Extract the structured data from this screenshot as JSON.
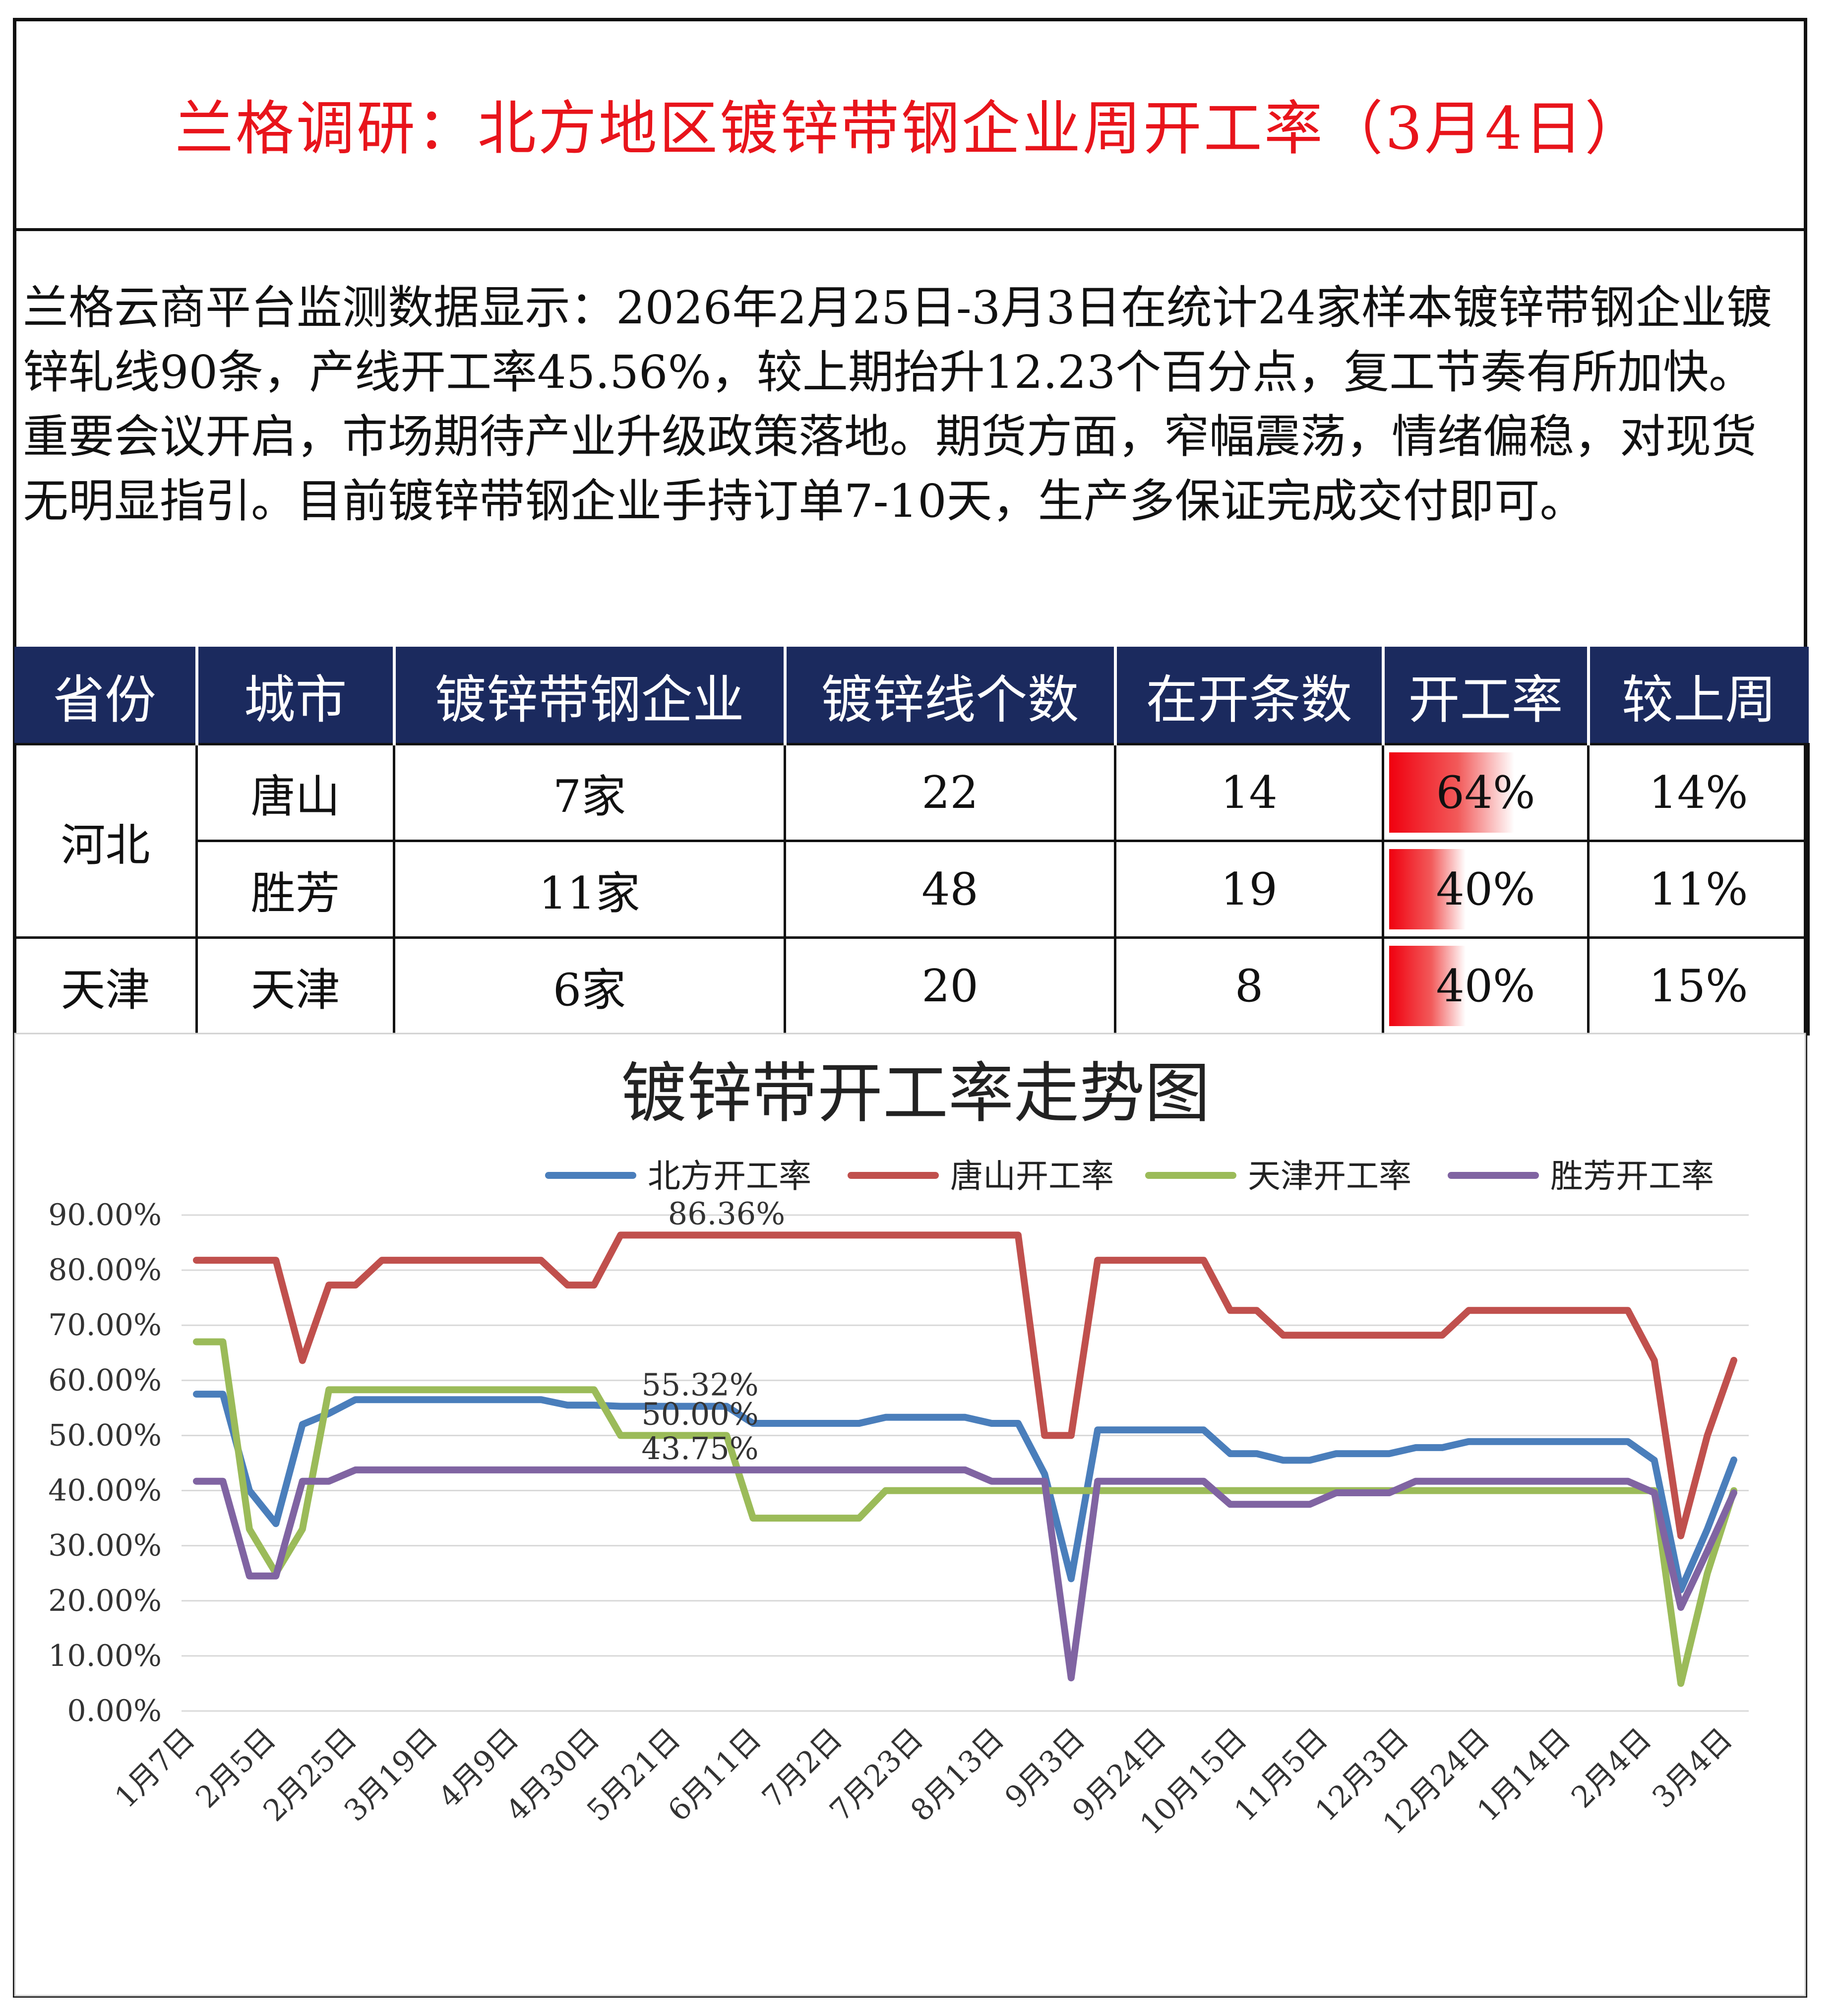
{
  "header": {
    "title": "兰格调研：北方地区镀锌带钢企业周开工率（3月4日）"
  },
  "summary": "兰格云商平台监测数据显示：2026年2月25日-3月3日在统计24家样本镀锌带钢企业镀锌轧线90条，产线开工率45.56%，较上期抬升12.23个百分点，复工节奏有所加快。重要会议开启，市场期待产业升级政策落地。期货方面，窄幅震荡，情绪偏稳，对现货无明显指引。目前镀锌带钢企业手持订单7-10天，生产多保证完成交付即可。",
  "table": {
    "headers": [
      "省份",
      "城市",
      "镀锌带钢企业",
      "镀锌线个数",
      "在开条数",
      "开工率",
      "较上周"
    ],
    "rows": [
      {
        "province": "河北",
        "city": "唐山",
        "enterprises": "7家",
        "lines": "22",
        "open": "14",
        "rate": "64%",
        "rate_value": 0.64,
        "wow": "14%"
      },
      {
        "province": "",
        "city": "胜芳",
        "enterprises": "11家",
        "lines": "48",
        "open": "19",
        "rate": "40%",
        "rate_value": 0.4,
        "wow": "11%"
      },
      {
        "province": "天津",
        "city": "天津",
        "enterprises": "6家",
        "lines": "20",
        "open": "8",
        "rate": "40%",
        "rate_value": 0.4,
        "wow": "15%"
      }
    ],
    "colors": {
      "header_bg": "#1b2a5e",
      "bar": "#f0000f"
    }
  },
  "chart_data": {
    "type": "line",
    "title": "镀锌带开工率走势图",
    "legend_position": "top",
    "grid": true,
    "ylim": [
      0,
      90
    ],
    "yticks": [
      "0.00%",
      "10.00%",
      "20.00%",
      "30.00%",
      "40.00%",
      "50.00%",
      "60.00%",
      "70.00%",
      "80.00%",
      "90.00%"
    ],
    "x_tick_labels": [
      "1月7日",
      "2月5日",
      "2月25日",
      "3月19日",
      "4月9日",
      "4月30日",
      "5月21日",
      "6月11日",
      "7月2日",
      "7月23日",
      "8月13日",
      "9月3日",
      "9月24日",
      "10月15日",
      "11月5日",
      "12月3日",
      "12月24日",
      "1月14日",
      "2月4日",
      "3月4日"
    ],
    "series": [
      {
        "name": "北方开工率",
        "color": "#4a7ebb",
        "values": [
          57.5,
          57.5,
          40,
          34,
          52,
          54,
          56.5,
          56.5,
          56.5,
          56.5,
          56.5,
          56.5,
          56.5,
          56.5,
          55.5,
          55.5,
          55.3,
          55.3,
          55.3,
          55.3,
          55.3,
          52.2,
          52.2,
          52.2,
          52.2,
          52.2,
          53.3,
          53.3,
          53.3,
          53.3,
          52.2,
          52.2,
          43,
          24,
          51,
          51,
          51,
          51,
          51,
          46.7,
          46.7,
          45.5,
          45.5,
          46.7,
          46.7,
          46.7,
          47.8,
          47.8,
          48.9,
          48.9,
          48.9,
          48.9,
          48.9,
          48.9,
          48.9,
          45.5,
          22,
          33,
          45.56
        ]
      },
      {
        "name": "唐山开工率",
        "color": "#c0504d",
        "values": [
          81.8,
          81.8,
          81.8,
          81.8,
          63.6,
          77.3,
          77.3,
          81.8,
          81.8,
          81.8,
          81.8,
          81.8,
          81.8,
          81.8,
          77.3,
          77.3,
          86.36,
          86.36,
          86.36,
          86.36,
          86.36,
          86.36,
          86.36,
          86.36,
          86.36,
          86.36,
          86.36,
          86.36,
          86.36,
          86.36,
          86.36,
          86.36,
          50,
          50,
          81.8,
          81.8,
          81.8,
          81.8,
          81.8,
          72.7,
          72.7,
          68.2,
          68.2,
          68.2,
          68.2,
          68.2,
          68.2,
          68.2,
          72.7,
          72.7,
          72.7,
          72.7,
          72.7,
          72.7,
          72.7,
          63.6,
          31.8,
          50,
          63.64
        ]
      },
      {
        "name": "天津开工率",
        "color": "#9bbb59",
        "values": [
          67,
          67,
          33,
          25,
          33,
          58.3,
          58.3,
          58.3,
          58.3,
          58.3,
          58.3,
          58.3,
          58.3,
          58.3,
          58.3,
          58.3,
          50,
          50,
          50,
          50,
          50,
          35,
          35,
          35,
          35,
          35,
          40,
          40,
          40,
          40,
          40,
          40,
          40,
          40,
          40,
          40,
          40,
          40,
          40,
          40,
          40,
          40,
          40,
          40,
          40,
          40,
          40,
          40,
          40,
          40,
          40,
          40,
          40,
          40,
          40,
          40,
          5,
          25,
          40
        ]
      },
      {
        "name": "胜芳开工率",
        "color": "#8064a2",
        "values": [
          41.7,
          41.7,
          24.5,
          24.5,
          41.7,
          41.7,
          43.75,
          43.75,
          43.75,
          43.75,
          43.75,
          43.75,
          43.75,
          43.75,
          43.75,
          43.75,
          43.75,
          43.75,
          43.75,
          43.75,
          43.75,
          43.75,
          43.75,
          43.75,
          43.75,
          43.75,
          43.75,
          43.75,
          43.75,
          43.75,
          41.7,
          41.7,
          41.7,
          6,
          41.7,
          41.7,
          41.7,
          41.7,
          41.7,
          37.5,
          37.5,
          37.5,
          37.5,
          39.6,
          39.6,
          39.6,
          41.7,
          41.7,
          41.7,
          41.7,
          41.7,
          41.7,
          41.7,
          41.7,
          41.7,
          39.6,
          18.8,
          29,
          39.6
        ]
      }
    ],
    "data_labels": [
      {
        "series": "唐山开工率",
        "index": 20,
        "text": "86.36%"
      },
      {
        "series": "北方开工率",
        "index": 19,
        "text": "55.32%"
      },
      {
        "series": "天津开工率",
        "index": 19,
        "text": "50.00%"
      },
      {
        "series": "胜芳开工率",
        "index": 19,
        "text": "43.75%"
      }
    ]
  }
}
